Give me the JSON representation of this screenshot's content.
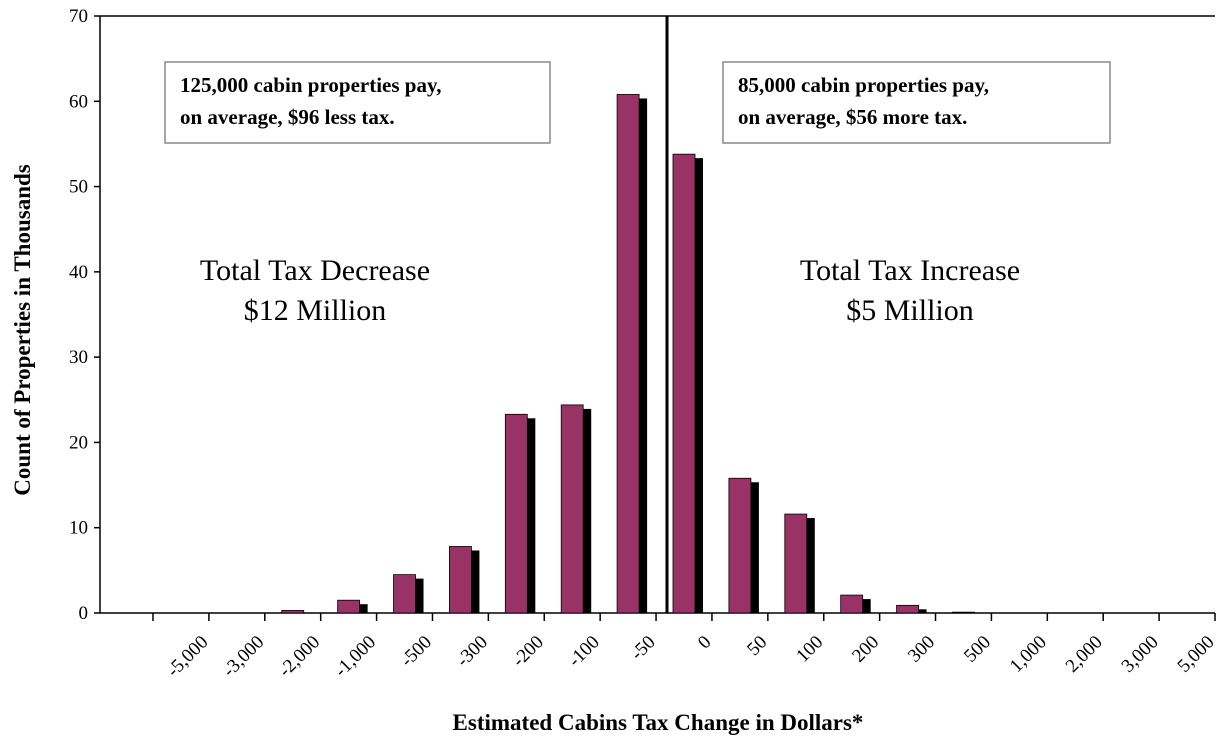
{
  "chart_data": {
    "type": "bar",
    "x_label": "Estimated Cabins Tax Change in Dollars*",
    "y_label": "Count of Properties in Thousands",
    "categories": [
      "-5,000",
      "-3,000",
      "-2,000",
      "-1,000",
      "-500",
      "-300",
      "-200",
      "-100",
      "-50",
      "0",
      "50",
      "100",
      "200",
      "300",
      "500",
      "1,000",
      "2,000",
      "3,000",
      "5,000"
    ],
    "values": [
      0,
      0,
      0.3,
      1.5,
      4.5,
      7.8,
      23.3,
      24.4,
      60.8,
      53.8,
      15.8,
      11.6,
      2.1,
      0.9,
      0.1,
      0,
      0,
      0,
      0
    ],
    "color": "#993366",
    "ylim": [
      0,
      70
    ],
    "yticks": [
      0,
      10,
      20,
      30,
      40,
      50,
      60,
      70
    ],
    "boxed_notes": [
      [
        "125,000 cabin properties pay,",
        "on  average, $96 less tax."
      ],
      [
        "85,000 cabin properties pay,",
        "on average, $56 more tax."
      ]
    ],
    "notes": [
      [
        "Total Tax Decrease",
        "$12 Million"
      ],
      [
        "Total Tax Increase",
        "$5 Million"
      ]
    ]
  }
}
